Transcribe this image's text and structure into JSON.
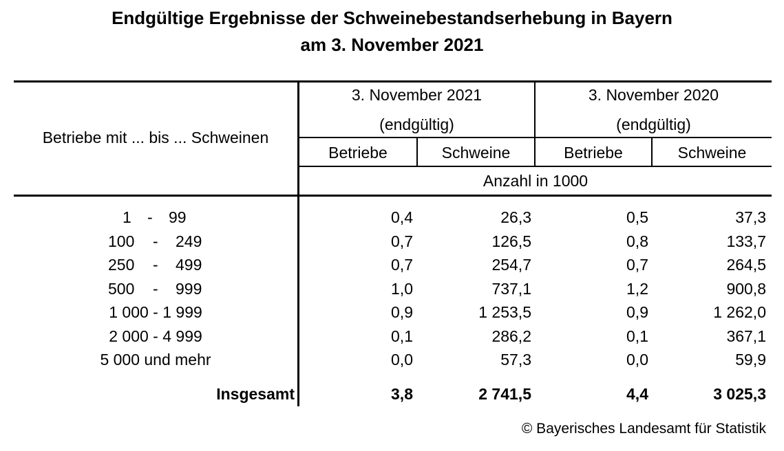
{
  "title_line1": "Endgültige Ergebnisse der Schweinebestandserhebung in Bayern",
  "title_line2": "am 3. November 2021",
  "header": {
    "row_label": "Betriebe mit ... bis ... Schweinen",
    "group_2021_line1": "3. November 2021",
    "group_2021_line2": "(endgültig)",
    "group_2020_line1": "3. November 2020",
    "group_2020_line2": "(endgültig)",
    "col_betriebe_2021": "Betriebe",
    "col_schweine_2021": "Schweine",
    "col_betriebe_2020": "Betriebe",
    "col_schweine_2020": "Schweine",
    "unit": "Anzahl in 1000"
  },
  "rows": [
    {
      "from": "1",
      "sep": "-",
      "to": "99",
      "b2021": "0,4",
      "s2021": "26,3",
      "b2020": "0,5",
      "s2020": "37,3"
    },
    {
      "from": "100",
      "sep": "-",
      "to": "249",
      "b2021": "0,7",
      "s2021": "126,5",
      "b2020": "0,8",
      "s2020": "133,7"
    },
    {
      "from": "250",
      "sep": "-",
      "to": "499",
      "b2021": "0,7",
      "s2021": "254,7",
      "b2020": "0,7",
      "s2020": "264,5"
    },
    {
      "from": "500",
      "sep": "-",
      "to": "999",
      "b2021": "1,0",
      "s2021": "737,1",
      "b2020": "1,2",
      "s2020": "900,8"
    },
    {
      "label": "1 000 - 1 999",
      "b2021": "0,9",
      "s2021": "1 253,5",
      "b2020": "0,9",
      "s2020": "1 262,0"
    },
    {
      "label": "2 000 - 4 999",
      "b2021": "0,1",
      "s2021": "286,2",
      "b2020": "0,1",
      "s2020": "367,1"
    },
    {
      "label": "5 000 und mehr",
      "b2021": "0,0",
      "s2021": "57,3",
      "b2020": "0,0",
      "s2020": "59,9"
    }
  ],
  "total": {
    "label": "Insgesamt",
    "b2021": "3,8",
    "s2021": "2 741,5",
    "b2020": "4,4",
    "s2020": "3 025,3"
  },
  "source": "© Bayerisches Landesamt für Statistik"
}
